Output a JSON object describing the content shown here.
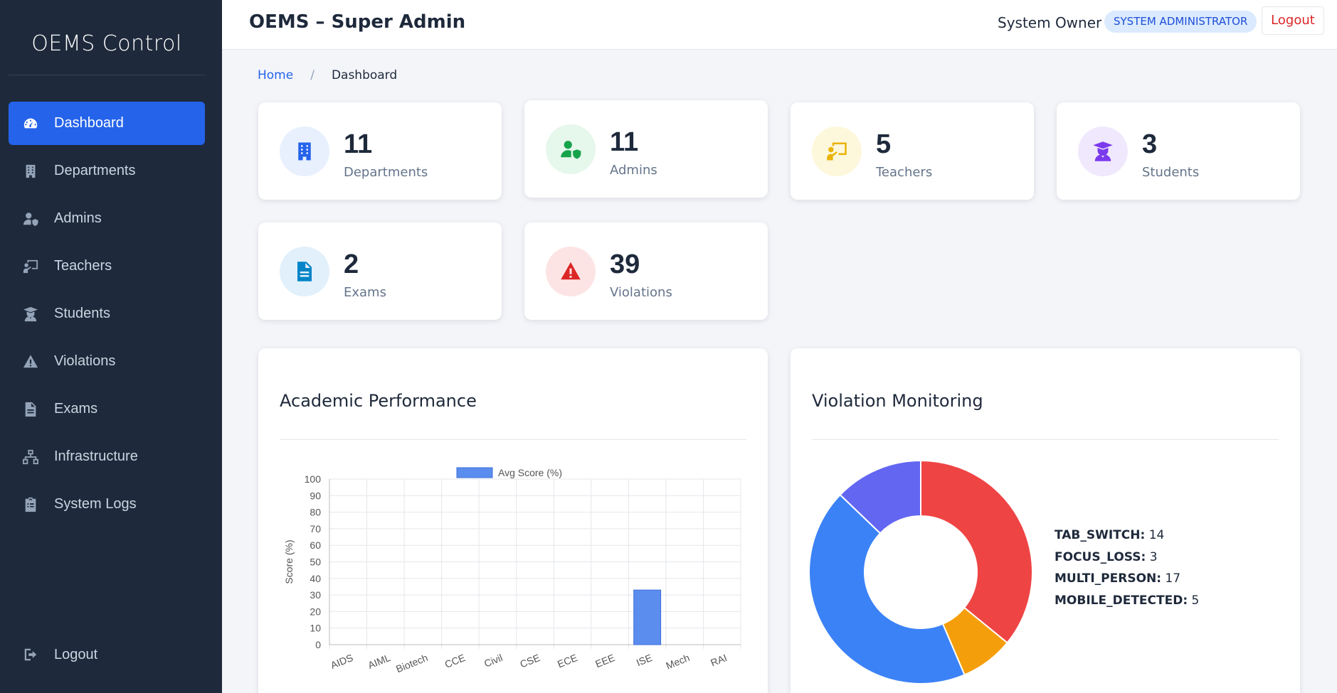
{
  "sidebar": {
    "brand": "OEMS Control",
    "items": [
      {
        "label": "Dashboard",
        "icon": "gauge-icon",
        "active": true
      },
      {
        "label": "Departments",
        "icon": "building-icon"
      },
      {
        "label": "Admins",
        "icon": "user-shield-icon"
      },
      {
        "label": "Teachers",
        "icon": "chalkboard-teacher-icon"
      },
      {
        "label": "Students",
        "icon": "graduate-icon"
      },
      {
        "label": "Violations",
        "icon": "warning-icon"
      },
      {
        "label": "Exams",
        "icon": "file-icon"
      },
      {
        "label": "Infrastructure",
        "icon": "network-icon"
      },
      {
        "label": "System Logs",
        "icon": "clipboard-icon"
      }
    ],
    "logout": {
      "label": "Logout",
      "icon": "sign-out-icon"
    }
  },
  "header": {
    "title": "OEMS – Super Admin",
    "user": "System Owner",
    "role": "SYSTEM ADMINISTRATOR",
    "logout": "Logout"
  },
  "breadcrumb": {
    "home": "Home",
    "separator": "/",
    "current": "Dashboard"
  },
  "stats": [
    {
      "value": "11",
      "label": "Departments",
      "icon": "building-icon",
      "color": "#2563eb",
      "bg": "#e8f0fe"
    },
    {
      "value": "11",
      "label": "Admins",
      "icon": "user-shield-icon",
      "color": "#16a34a",
      "bg": "#e6f7ec"
    },
    {
      "value": "5",
      "label": "Teachers",
      "icon": "chalkboard-teacher-icon",
      "color": "#eab308",
      "bg": "#fdf8dc"
    },
    {
      "value": "3",
      "label": "Students",
      "icon": "graduate-icon",
      "color": "#7c3aed",
      "bg": "#f0e8fd"
    },
    {
      "value": "2",
      "label": "Exams",
      "icon": "file-icon",
      "color": "#0284c7",
      "bg": "#e1f0fb"
    },
    {
      "value": "39",
      "label": "Violations",
      "icon": "warning-icon",
      "color": "#dc2626",
      "bg": "#fde4e4"
    }
  ],
  "charts": {
    "performance_title": "Academic Performance",
    "violations_title": "Violation Monitoring"
  },
  "chart_data": [
    {
      "type": "bar",
      "title": "Academic Performance",
      "categories": [
        "AIDS",
        "AIML",
        "Biotech",
        "CCE",
        "Civil",
        "CSE",
        "ECE",
        "EEE",
        "ISE",
        "Mech",
        "RAI"
      ],
      "series": [
        {
          "name": "Avg Score (%)",
          "values": [
            0,
            0,
            0,
            0,
            0,
            0,
            0,
            0,
            33,
            0,
            0
          ],
          "color": "#5b8def"
        }
      ],
      "ylabel": "Score (%)",
      "ylim": [
        0,
        100
      ],
      "yticks": [
        0,
        10,
        20,
        30,
        40,
        50,
        60,
        70,
        80,
        90,
        100
      ],
      "grid": true,
      "legend": "top"
    },
    {
      "type": "pie",
      "title": "Violation Monitoring",
      "donut": true,
      "slices": [
        {
          "label": "TAB_SWITCH",
          "value": 14,
          "color": "#ef4444"
        },
        {
          "label": "FOCUS_LOSS",
          "value": 3,
          "color": "#f59e0b"
        },
        {
          "label": "MULTI_PERSON",
          "value": 17,
          "color": "#3b82f6"
        },
        {
          "label": "MOBILE_DETECTED",
          "value": 5,
          "color": "#6366f1"
        }
      ],
      "legend": "right"
    }
  ]
}
